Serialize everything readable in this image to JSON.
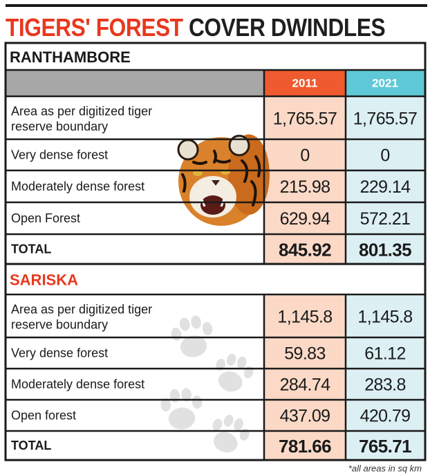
{
  "title": {
    "part1": "TIGERS' FOREST",
    "part2": "COVER DWINDLES"
  },
  "footnote": "*all areas in sq km",
  "colors": {
    "accent_red": "#e8381f",
    "header_gray": "#a7a7a7",
    "col2011_header": "#ef5a2e",
    "col2021_header": "#5fc8d6",
    "col2011_cell": "#fbd9c6",
    "col2021_cell": "#dcf0f4",
    "border": "#1a1a1a"
  },
  "icons": [
    "tiger-photo",
    "paw-print-icon"
  ],
  "chart_data": {
    "type": "table",
    "columns": [
      "2011",
      "2021"
    ],
    "sections": [
      {
        "name": "RANTHAMBORE",
        "rows": [
          {
            "label": "Area as per digitized tiger reserve boundary",
            "values": [
              "1,765.57",
              "1,765.57"
            ]
          },
          {
            "label": "Very dense forest",
            "values": [
              "0",
              "0"
            ]
          },
          {
            "label": "Moderately dense forest",
            "values": [
              "215.98",
              "229.14"
            ]
          },
          {
            "label": "Open Forest",
            "values": [
              "629.94",
              "572.21"
            ]
          }
        ],
        "total": {
          "label": "TOTAL",
          "values": [
            "845.92",
            "801.35"
          ]
        }
      },
      {
        "name": "SARISKA",
        "rows": [
          {
            "label": "Area as per digitized tiger reserve boundary",
            "values": [
              "1,145.8",
              "1,145.8"
            ]
          },
          {
            "label": "Very dense forest",
            "values": [
              "59.83",
              "61.12"
            ]
          },
          {
            "label": "Moderately dense forest",
            "values": [
              "284.74",
              "283.8"
            ]
          },
          {
            "label": "Open forest",
            "values": [
              "437.09",
              "420.79"
            ]
          }
        ],
        "total": {
          "label": "TOTAL",
          "values": [
            "781.66",
            "765.71"
          ]
        }
      }
    ]
  }
}
